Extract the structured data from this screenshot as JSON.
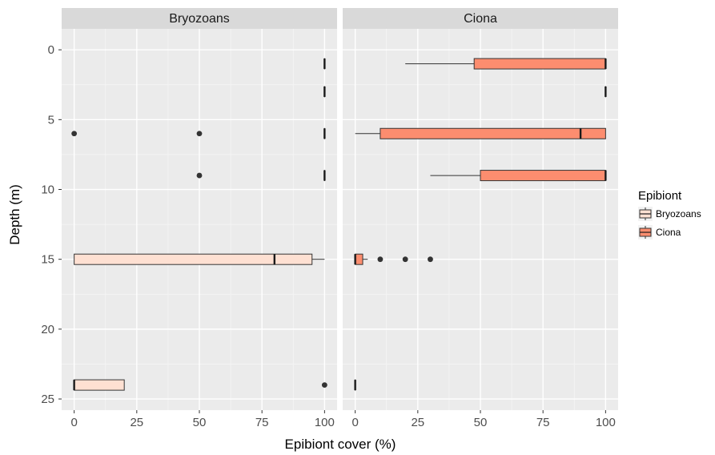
{
  "chart_data": {
    "type": "boxplot",
    "orientation": "horizontal",
    "xlabel": "Epibiont cover (%)",
    "ylabel": "Depth (m)",
    "xlim": [
      -5,
      105
    ],
    "ylim": [
      -1.5,
      25.8
    ],
    "x_ticks": [
      0,
      25,
      50,
      75,
      100
    ],
    "y_ticks": [
      0,
      5,
      10,
      15,
      20,
      25
    ],
    "y_reversed": true,
    "grid": true,
    "legend": {
      "title": "Epibiont",
      "position": "right",
      "entries": [
        {
          "name": "Bryozoans",
          "color": "#fee0d2"
        },
        {
          "name": "Ciona",
          "color": "#fc8d6f"
        }
      ]
    },
    "facets": [
      {
        "title": "Bryozoans",
        "fill": "#fee0d2",
        "boxes": [
          {
            "depth": 1,
            "whisker_low": 100,
            "q1": 100,
            "median": 100,
            "q3": 100,
            "whisker_high": 100,
            "outliers": []
          },
          {
            "depth": 3,
            "whisker_low": 100,
            "q1": 100,
            "median": 100,
            "q3": 100,
            "whisker_high": 100,
            "outliers": []
          },
          {
            "depth": 6,
            "whisker_low": 100,
            "q1": 100,
            "median": 100,
            "q3": 100,
            "whisker_high": 100,
            "outliers": [
              0,
              50
            ]
          },
          {
            "depth": 9,
            "whisker_low": 100,
            "q1": 100,
            "median": 100,
            "q3": 100,
            "whisker_high": 100,
            "outliers": [
              50
            ]
          },
          {
            "depth": 15,
            "whisker_low": 0,
            "q1": 0,
            "median": 80,
            "q3": 95,
            "whisker_high": 100,
            "outliers": []
          },
          {
            "depth": 24,
            "whisker_low": 0,
            "q1": 0,
            "median": 0,
            "q3": 20,
            "whisker_high": 20,
            "outliers": [
              100
            ]
          }
        ]
      },
      {
        "title": "Ciona",
        "fill": "#fc8d6f",
        "boxes": [
          {
            "depth": 1,
            "whisker_low": 20,
            "q1": 47.5,
            "median": 100,
            "q3": 100,
            "whisker_high": 100,
            "outliers": []
          },
          {
            "depth": 3,
            "whisker_low": 100,
            "q1": 100,
            "median": 100,
            "q3": 100,
            "whisker_high": 100,
            "outliers": []
          },
          {
            "depth": 6,
            "whisker_low": 0,
            "q1": 10,
            "median": 90,
            "q3": 100,
            "whisker_high": 100,
            "outliers": []
          },
          {
            "depth": 9,
            "whisker_low": 30,
            "q1": 50,
            "median": 100,
            "q3": 100,
            "whisker_high": 100,
            "outliers": []
          },
          {
            "depth": 15,
            "whisker_low": 0,
            "q1": 0,
            "median": 0,
            "q3": 3,
            "whisker_high": 5,
            "outliers": [
              10,
              20,
              30
            ]
          },
          {
            "depth": 24,
            "whisker_low": 0,
            "q1": 0,
            "median": 0,
            "q3": 0,
            "whisker_high": 0,
            "outliers": []
          }
        ]
      }
    ]
  }
}
